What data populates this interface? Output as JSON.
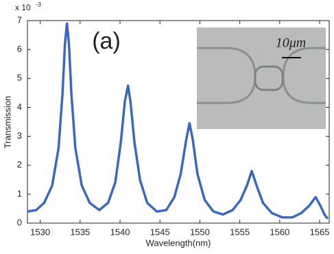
{
  "chart_data": {
    "type": "line",
    "xlabel": "Wavelength(nm)",
    "ylabel": "Transmission",
    "y_multiplier": "x 10",
    "y_multiplier_exponent": "-3",
    "panel_label": "(a)",
    "inset_scale_label": "10μm",
    "xlim": [
      1528.4,
      1566.2
    ],
    "xticks": [
      1530,
      1535,
      1540,
      1545,
      1550,
      1555,
      1560,
      1565
    ],
    "ylim": [
      0,
      7
    ],
    "yticks": [
      0,
      1,
      2,
      3,
      4,
      5,
      6,
      7
    ],
    "series": [
      {
        "color": "#3a68c0",
        "x": [
          1528.4,
          1529.5,
          1530.5,
          1531.5,
          1532.3,
          1532.8,
          1533.1,
          1533.35,
          1533.6,
          1533.9,
          1534.4,
          1535.2,
          1536.2,
          1537.4,
          1538.5,
          1539.4,
          1540.1,
          1540.6,
          1541.0,
          1541.3,
          1541.8,
          1542.5,
          1543.4,
          1544.6,
          1545.8,
          1546.8,
          1547.6,
          1548.3,
          1548.7,
          1549.1,
          1549.7,
          1550.6,
          1551.7,
          1552.9,
          1554.1,
          1555.1,
          1555.9,
          1556.5,
          1557.1,
          1557.9,
          1559.0,
          1560.3,
          1561.6,
          1562.7,
          1563.7,
          1564.5,
          1565.1,
          1565.6,
          1566.0
        ],
        "values": [
          0.4,
          0.45,
          0.7,
          1.3,
          2.6,
          4.5,
          6.2,
          6.9,
          6.2,
          4.5,
          2.6,
          1.3,
          0.7,
          0.45,
          0.7,
          1.4,
          2.8,
          4.2,
          4.75,
          4.2,
          2.8,
          1.5,
          0.7,
          0.4,
          0.45,
          0.9,
          1.7,
          2.9,
          3.45,
          2.9,
          1.7,
          0.8,
          0.4,
          0.3,
          0.45,
          0.8,
          1.3,
          1.8,
          1.3,
          0.7,
          0.35,
          0.2,
          0.2,
          0.35,
          0.6,
          0.9,
          0.6,
          0.3,
          0.15
        ]
      }
    ]
  }
}
